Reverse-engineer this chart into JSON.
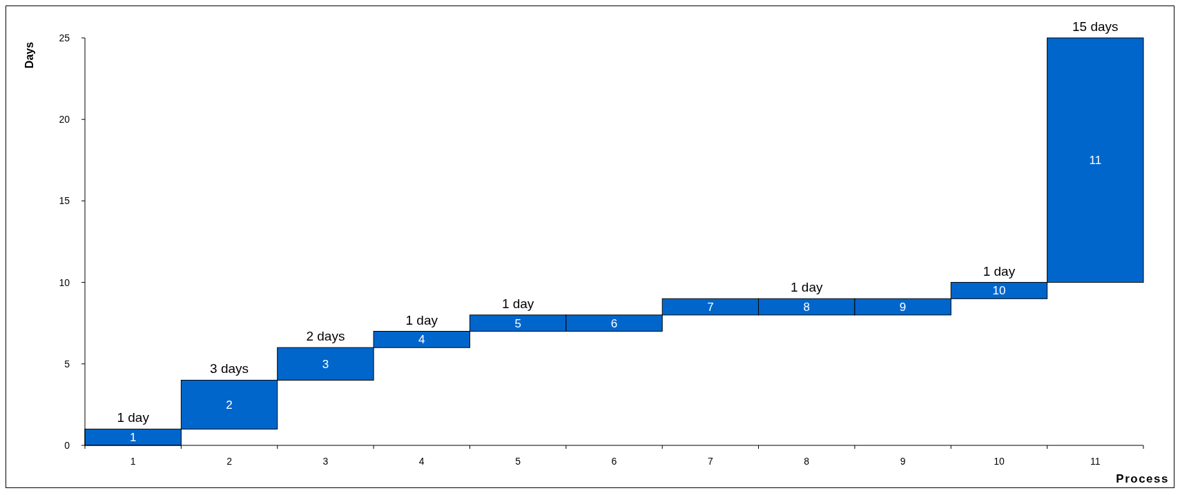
{
  "chart_data": {
    "type": "bar",
    "xlabel": "Process",
    "ylabel": "Days",
    "categories": [
      "1",
      "2",
      "3",
      "4",
      "5",
      "6",
      "7",
      "8",
      "9",
      "10",
      "11"
    ],
    "values": [
      1,
      3,
      2,
      1,
      1,
      1,
      1,
      1,
      1,
      1,
      15
    ],
    "base": [
      0,
      1,
      4,
      6,
      7,
      7,
      8,
      8,
      8,
      9,
      10
    ],
    "color": "#0066cc",
    "value_labels": [
      "1 day",
      "3 days",
      "2 days",
      "1 day",
      "1 day",
      null,
      null,
      "1 day",
      null,
      "1 day",
      "15 days"
    ],
    "annotations": [
      "1",
      "2",
      "3",
      "4",
      "5",
      "6",
      "7",
      "8",
      "9",
      "10",
      "11"
    ],
    "ylim": [
      0,
      25
    ],
    "yticks": [
      0,
      5,
      10,
      15,
      20,
      25
    ],
    "grid": false
  }
}
